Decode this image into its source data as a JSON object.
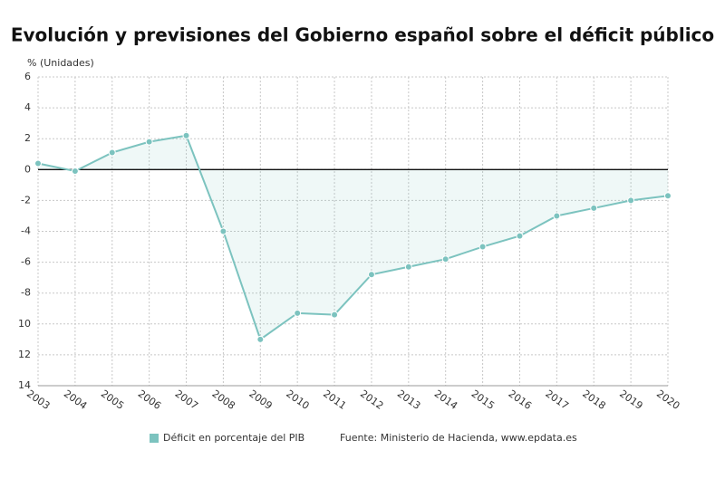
{
  "chart_data": {
    "type": "area",
    "title": "Evolución y previsiones del Gobierno español sobre el déficit público",
    "y_axis_label": "% (Unidades)",
    "source": "Fuente: Ministerio de Hacienda, www.epdata.es",
    "categories": [
      "2003",
      "2004",
      "2005",
      "2006",
      "2007",
      "2008",
      "2009",
      "2010",
      "2011",
      "2012",
      "2013",
      "2014",
      "2015",
      "2016",
      "2017",
      "2018",
      "2019",
      "2020"
    ],
    "series": [
      {
        "name": "Déficit en porcentaje del PIB",
        "color": "#7cc3bf",
        "values": [
          0.4,
          -0.1,
          1.1,
          1.8,
          2.2,
          -4.0,
          -11.0,
          -9.3,
          -9.4,
          -6.8,
          -6.3,
          -5.8,
          -5.0,
          -4.3,
          -3.0,
          -2.5,
          -2.0,
          -1.7
        ]
      }
    ],
    "ylim": [
      -14,
      6
    ],
    "yticks": [
      6,
      4,
      2,
      0,
      -2,
      -4,
      -6,
      -8,
      {
        "value": -10,
        "label": "10"
      },
      {
        "value": -12,
        "label": "12"
      },
      {
        "value": -14,
        "label": "14"
      }
    ],
    "grid": true
  }
}
